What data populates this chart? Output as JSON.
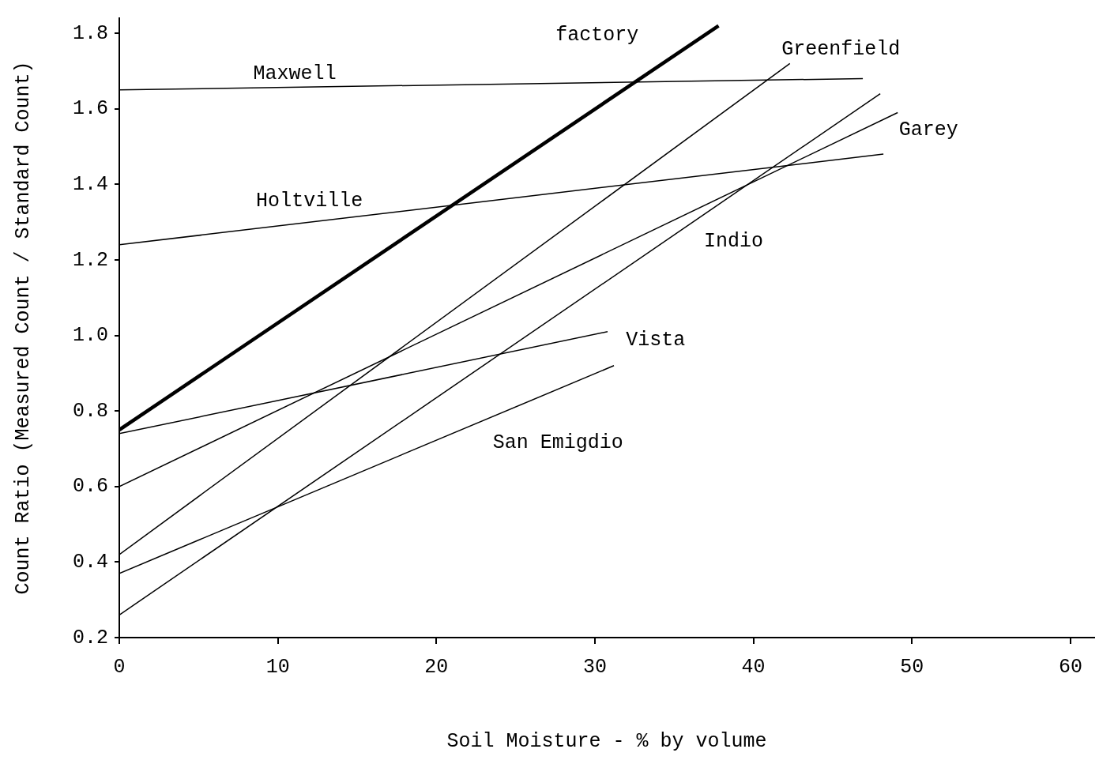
{
  "chart_data": {
    "type": "line",
    "xlabel": "Soil Moisture - % by volume",
    "ylabel": "Count Ratio (Measured Count / Standard Count)",
    "xlim": [
      0,
      61.5
    ],
    "xticks": [
      0,
      10,
      20,
      30,
      40,
      50,
      60
    ],
    "ylim": [
      0.2,
      1.84
    ],
    "yticks": [
      0.2,
      0.4,
      0.6,
      0.8,
      {
        "value": 1,
        "label": "1.0"
      },
      1.2,
      1.4,
      1.6,
      1.8
    ],
    "grid": false,
    "legend": false,
    "marker": "none",
    "line_style": "solid",
    "series": [
      {
        "name": "Maxwell",
        "color": "#000000",
        "x": [
          0,
          46.9
        ],
        "values": [
          1.65,
          1.68
        ]
      },
      {
        "name": "Holtville",
        "color": "#000000",
        "x": [
          0,
          48.2
        ],
        "values": [
          1.24,
          1.48
        ]
      },
      {
        "name": "factory",
        "color": "#000000",
        "x": [
          0,
          37.8
        ],
        "values": [
          0.75,
          1.82
        ]
      },
      {
        "name": "Greenfield",
        "color": "#000000",
        "x": [
          0,
          42.3
        ],
        "values": [
          0.42,
          1.72
        ]
      },
      {
        "name": "Garey",
        "color": "#000000",
        "x": [
          0,
          49.1
        ],
        "values": [
          0.6,
          1.59
        ]
      },
      {
        "name": "Indio",
        "color": "#000000",
        "x": [
          0,
          48
        ],
        "values": [
          0.26,
          1.64
        ]
      },
      {
        "name": "Vista",
        "color": "#000000",
        "x": [
          0,
          30.8
        ],
        "values": [
          0.74,
          1.01
        ]
      },
      {
        "name": "San Emigdio",
        "color": "#000000",
        "x": [
          0,
          31.2
        ],
        "values": [
          0.37,
          0.92
        ]
      }
    ]
  }
}
